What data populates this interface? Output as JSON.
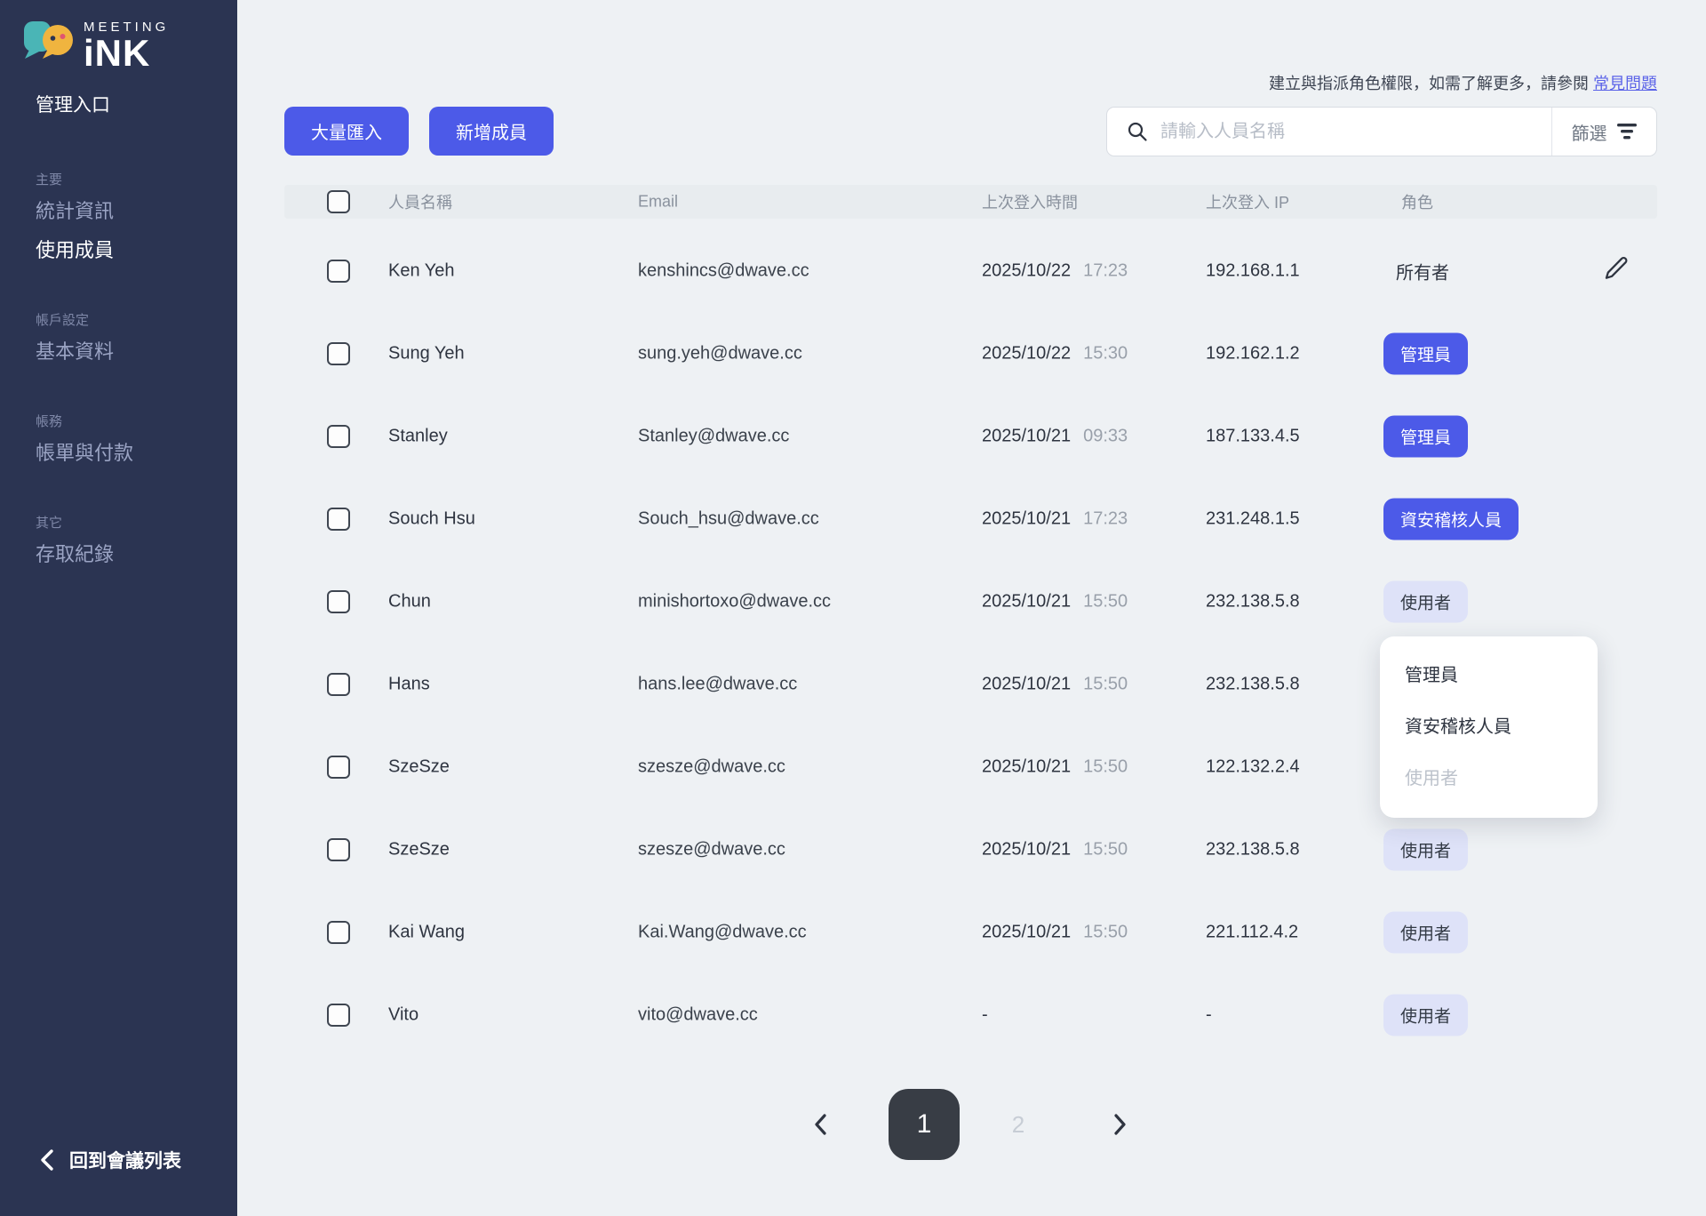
{
  "brand": {
    "meeting": "MEETING",
    "ink": "iNK"
  },
  "sidebar": {
    "portal_title": "管理入口",
    "back_label": "回到會議列表",
    "sections": [
      {
        "label": "主要",
        "items": [
          {
            "label": "統計資訊",
            "active": false
          },
          {
            "label": "使用成員",
            "active": true
          }
        ]
      },
      {
        "label": "帳戶設定",
        "items": [
          {
            "label": "基本資料",
            "active": false
          }
        ]
      },
      {
        "label": "帳務",
        "items": [
          {
            "label": "帳單與付款",
            "active": false
          }
        ]
      },
      {
        "label": "其它",
        "items": [
          {
            "label": "存取紀錄",
            "active": false
          }
        ]
      }
    ]
  },
  "header": {
    "hint": "建立與指派角色權限，如需了解更多，請參閱 ",
    "faq_link": "常見問題"
  },
  "toolbar": {
    "bulk_import": "大量匯入",
    "add_member": "新增成員",
    "search_placeholder": "請輸入人員名稱",
    "filter_label": "篩選"
  },
  "table": {
    "columns": {
      "name": "人員名稱",
      "email": "Email",
      "last_login_time": "上次登入時間",
      "last_login_ip": "上次登入 IP",
      "role": "角色"
    },
    "rows": [
      {
        "name": "Ken Yeh",
        "email": "kenshincs@dwave.cc",
        "date": "2025/10/22",
        "time": "17:23",
        "ip": "192.168.1.1",
        "role": "所有者",
        "role_style": "owner",
        "editable": true
      },
      {
        "name": "Sung Yeh",
        "email": "sung.yeh@dwave.cc",
        "date": "2025/10/22",
        "time": "15:30",
        "ip": "192.162.1.2",
        "role": "管理員",
        "role_style": "solid",
        "editable": false
      },
      {
        "name": "Stanley",
        "email": "Stanley@dwave.cc",
        "date": "2025/10/21",
        "time": "09:33",
        "ip": "187.133.4.5",
        "role": "管理員",
        "role_style": "solid",
        "editable": false
      },
      {
        "name": "Souch Hsu",
        "email": "Souch_hsu@dwave.cc",
        "date": "2025/10/21",
        "time": "17:23",
        "ip": "231.248.1.5",
        "role": "資安稽核人員",
        "role_style": "solid",
        "editable": false
      },
      {
        "name": "Chun",
        "email": "minishortoxo@dwave.cc",
        "date": "2025/10/21",
        "time": "15:50",
        "ip": "232.138.5.8",
        "role": "使用者",
        "role_style": "soft",
        "editable": false
      },
      {
        "name": "Hans",
        "email": "hans.lee@dwave.cc",
        "date": "2025/10/21",
        "time": "15:50",
        "ip": "232.138.5.8",
        "role": "",
        "role_style": "hidden",
        "editable": false
      },
      {
        "name": "SzeSze",
        "email": "szesze@dwave.cc",
        "date": "2025/10/21",
        "time": "15:50",
        "ip": "122.132.2.4",
        "role": "",
        "role_style": "hidden",
        "editable": false
      },
      {
        "name": "SzeSze",
        "email": "szesze@dwave.cc",
        "date": "2025/10/21",
        "time": "15:50",
        "ip": "232.138.5.8",
        "role": "使用者",
        "role_style": "soft",
        "editable": false
      },
      {
        "name": "Kai Wang",
        "email": "Kai.Wang@dwave.cc",
        "date": "2025/10/21",
        "time": "15:50",
        "ip": "221.112.4.2",
        "role": "使用者",
        "role_style": "soft",
        "editable": false
      },
      {
        "name": "Vito",
        "email": "vito@dwave.cc",
        "date": "-",
        "time": "",
        "ip": "-",
        "role": "使用者",
        "role_style": "soft",
        "editable": false
      }
    ]
  },
  "role_dropdown": {
    "items": [
      {
        "label": "管理員",
        "disabled": false
      },
      {
        "label": "資安稽核人員",
        "disabled": false
      },
      {
        "label": "使用者",
        "disabled": true
      }
    ]
  },
  "pagination": {
    "current": "1",
    "other": "2"
  },
  "colors": {
    "accent": "#4c5ae8",
    "accent_soft": "#dee2f8",
    "sidebar_bg": "#2b3452",
    "page_bg": "#eef1f4",
    "table_header_bg": "#e8ecef",
    "link": "#5b63e8",
    "pagination_current_bg": "#383d45"
  }
}
